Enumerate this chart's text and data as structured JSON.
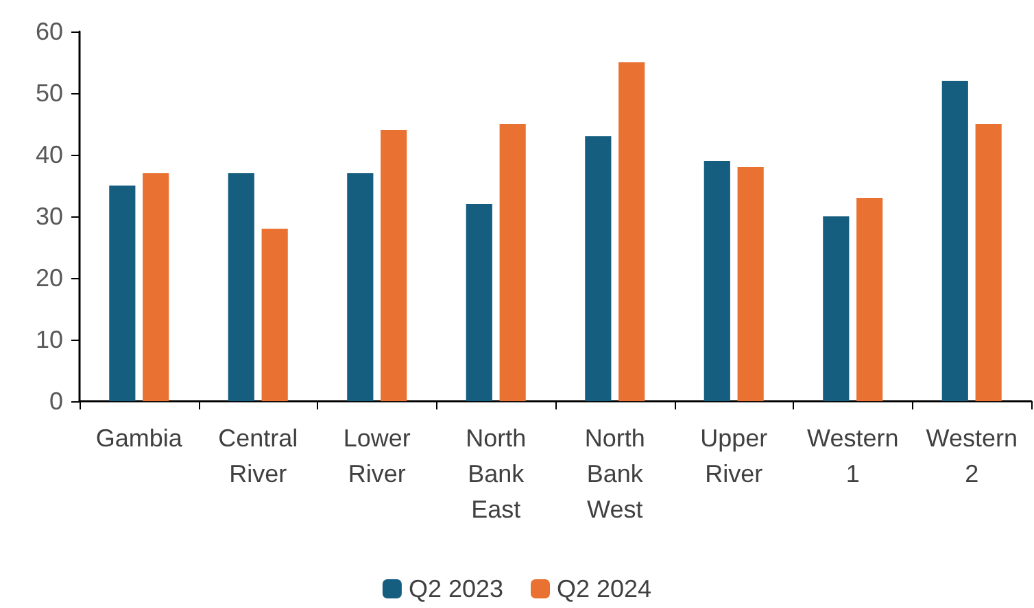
{
  "chart_data": {
    "type": "bar",
    "categories": [
      "Gambia",
      "Central\nRiver",
      "Lower\nRiver",
      "North\nBank\nEast",
      "North\nBank\nWest",
      "Upper\nRiver",
      "Western\n1",
      "Western\n2"
    ],
    "series": [
      {
        "name": "Q2 2023",
        "color": "#165e80",
        "values": [
          35,
          37,
          37,
          32,
          43,
          39,
          30,
          52
        ]
      },
      {
        "name": "Q2 2024",
        "color": "#e97132",
        "values": [
          37,
          28,
          44,
          45,
          55,
          38,
          33,
          45
        ]
      }
    ],
    "ylim": [
      0,
      60
    ],
    "yticks": [
      0,
      10,
      20,
      30,
      40,
      50,
      60
    ],
    "grid": false,
    "legend": "bottom"
  }
}
